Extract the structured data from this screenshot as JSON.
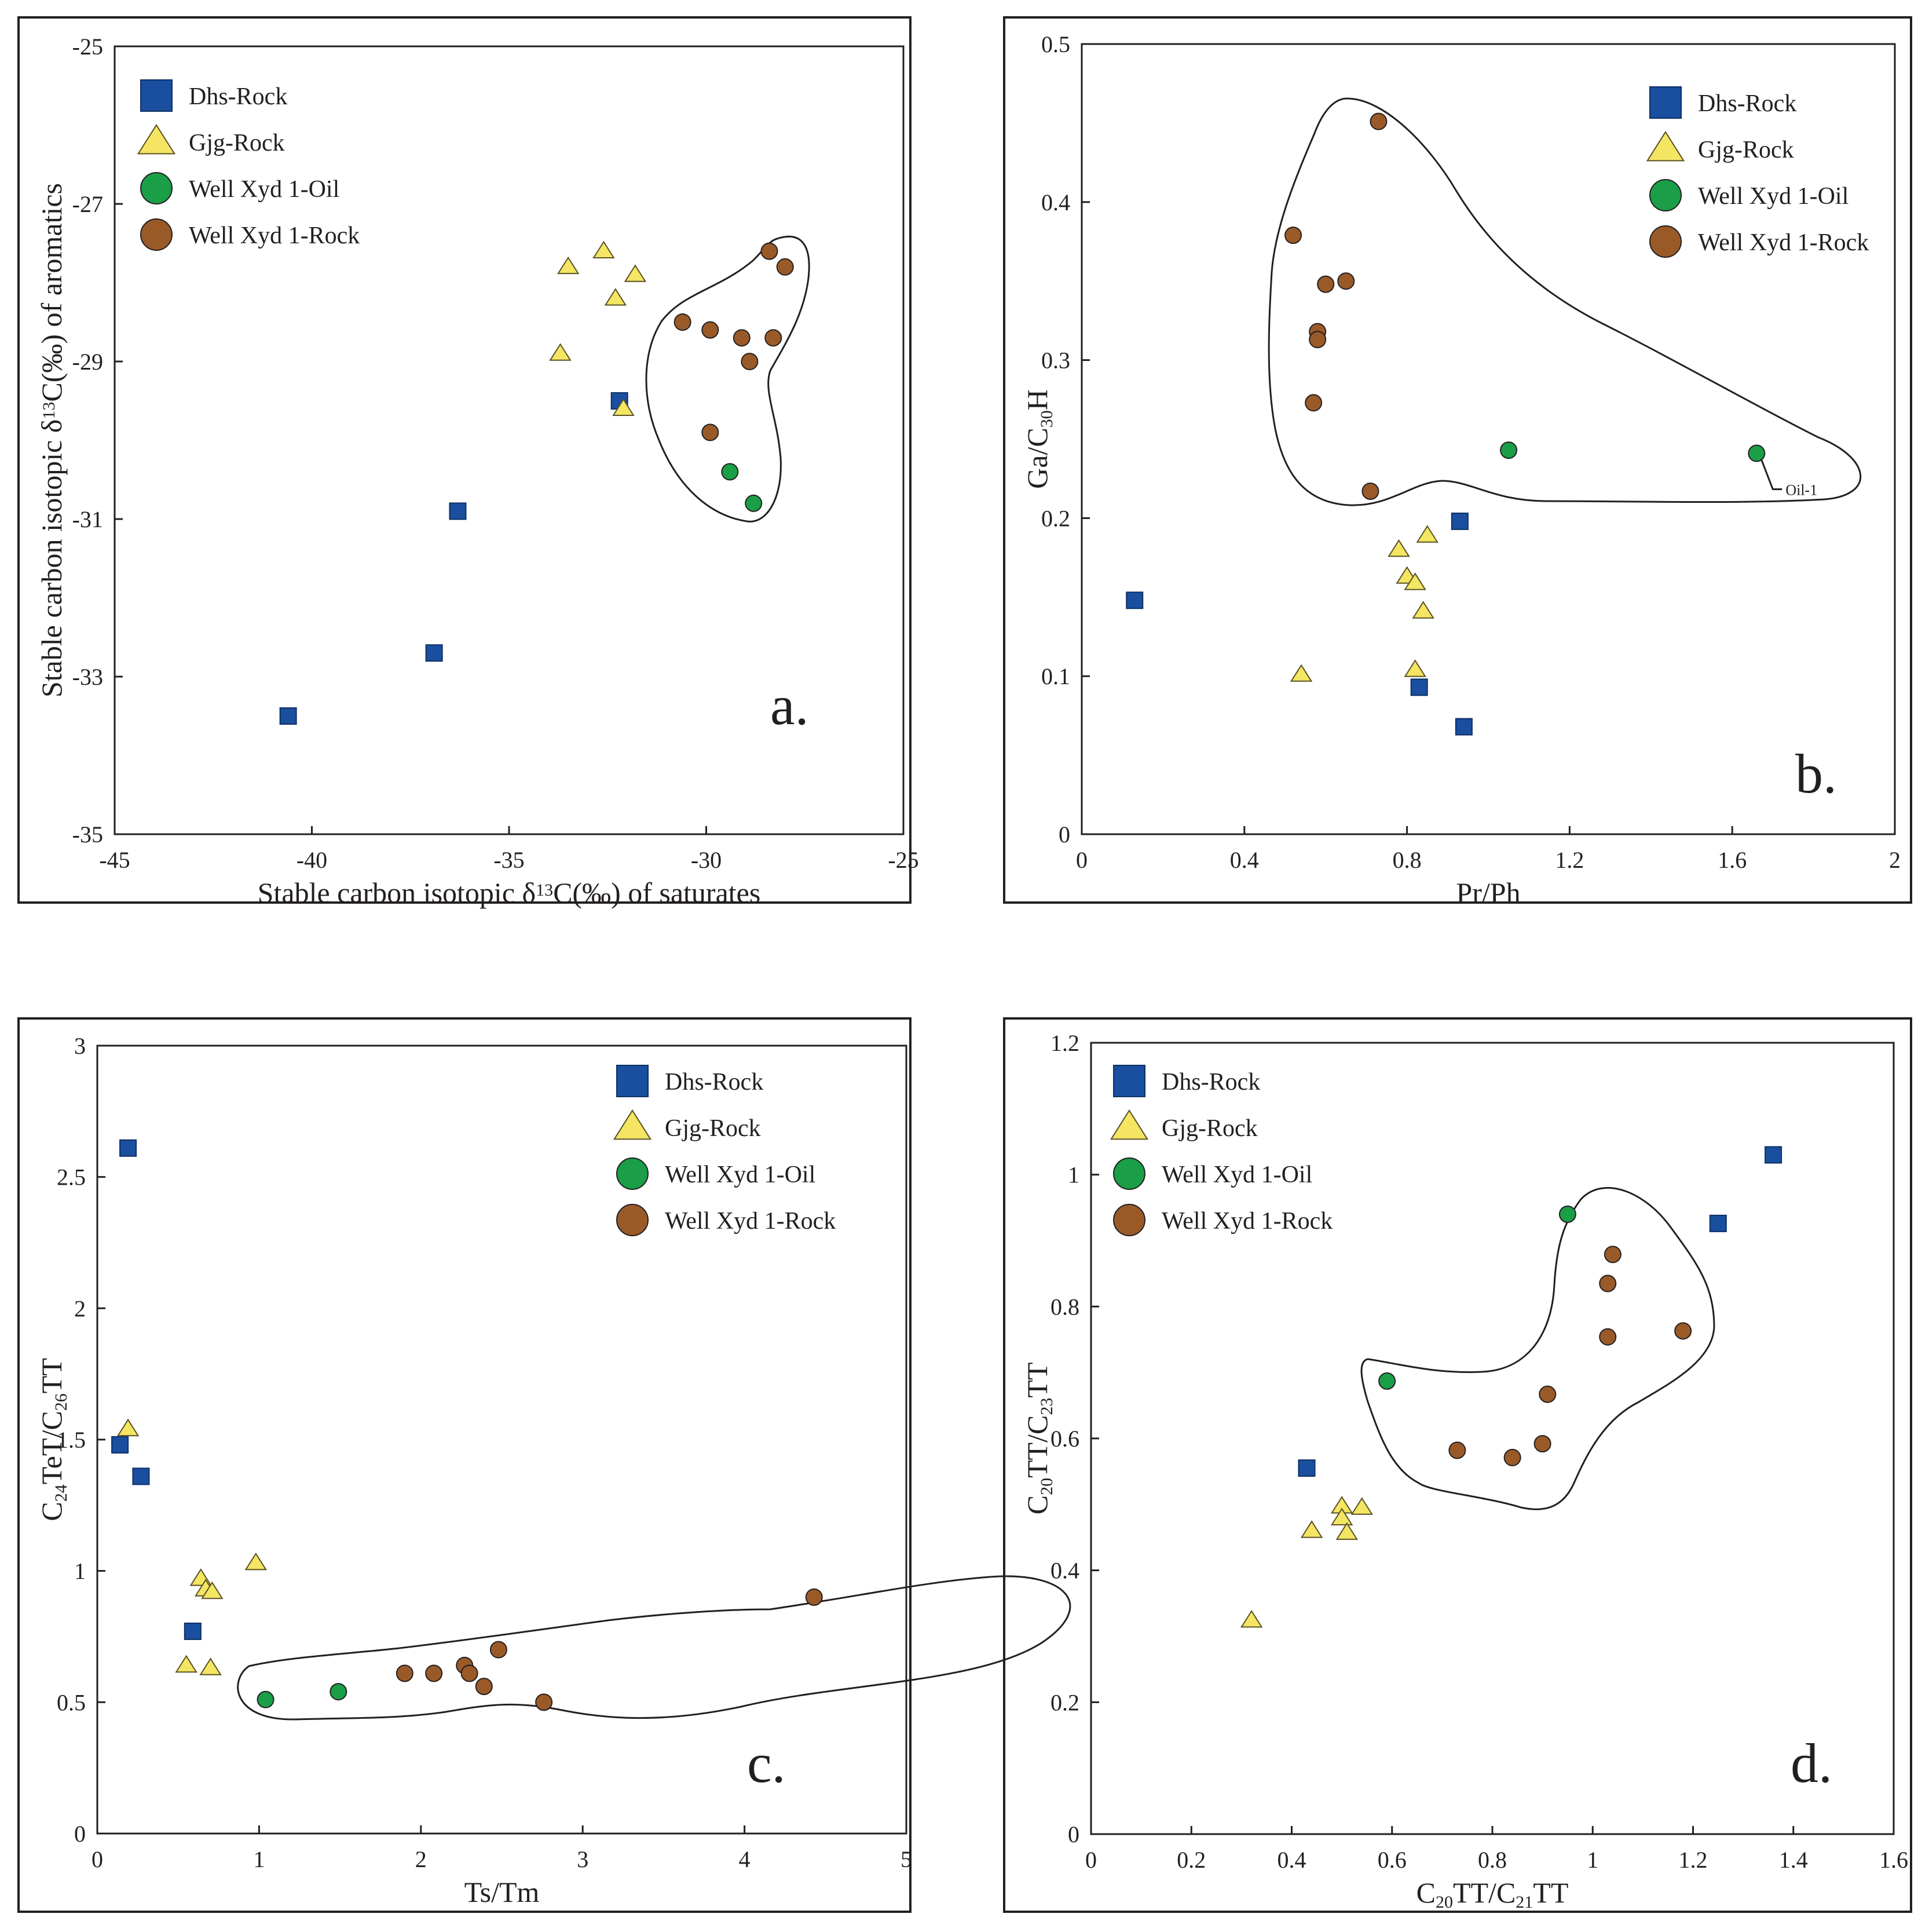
{
  "legend_labels": [
    "Dhs-Rock",
    "Gjg-Rock",
    "Well Xyd 1-Oil",
    "Well Xyd 1-Rock"
  ],
  "colors": {
    "dhs_rock": "#1a4f9f",
    "gjg_rock": "#f4e563",
    "xyd_oil": "#1a9e47",
    "xyd_rock": "#9a5a28",
    "ink": "#231f20"
  },
  "chart_data": [
    {
      "panel": "a.",
      "type": "scatter",
      "xlabel": "Stable carbon isotopic δ13C(‰) of  saturates",
      "ylabel": "Stable carbon isotopic δ13C(‰)  of aromatics",
      "xlim": [
        -45,
        -25
      ],
      "ylim": [
        -35,
        -25
      ],
      "xticks": [
        -45,
        -40,
        -35,
        -30,
        -25
      ],
      "yticks": [
        -35,
        -33,
        -31,
        -29,
        -27,
        -25
      ],
      "legend_position": "top-left",
      "series": [
        {
          "name": "Dhs-Rock",
          "x": [
            -40.6,
            -36.9,
            -36.3,
            -32.2
          ],
          "y": [
            -33.5,
            -32.7,
            -30.9,
            -29.5
          ]
        },
        {
          "name": "Gjg-Rock",
          "x": [
            -33.5,
            -32.6,
            -32.3,
            -31.8,
            -33.7,
            -32.1
          ],
          "y": [
            -27.8,
            -27.6,
            -28.2,
            -27.9,
            -28.9,
            -29.6
          ]
        },
        {
          "name": "Well Xyd 1-Oil",
          "x": [
            -29.4,
            -28.8
          ],
          "y": [
            -30.4,
            -30.8
          ]
        },
        {
          "name": "Well Xyd 1-Rock",
          "x": [
            -30.6,
            -29.9,
            -29.1,
            -28.9,
            -28.4,
            -28.0,
            -28.3,
            -29.9
          ],
          "y": [
            -28.5,
            -28.6,
            -28.7,
            -29.0,
            -27.6,
            -27.8,
            -28.7,
            -29.9
          ]
        }
      ]
    },
    {
      "panel": "b.",
      "type": "scatter",
      "xlabel": "Pr/Ph",
      "ylabel": "Ga/C30H",
      "xlim": [
        0,
        2
      ],
      "ylim": [
        0,
        0.5
      ],
      "xticks": [
        0,
        0.4,
        0.8,
        1.2,
        1.6,
        2
      ],
      "yticks": [
        0,
        0.1,
        0.2,
        0.3,
        0.4,
        0.5
      ],
      "legend_position": "top-right",
      "annotation": "Oil-1",
      "series": [
        {
          "name": "Dhs-Rock",
          "x": [
            0.13,
            0.93,
            0.83,
            0.94
          ],
          "y": [
            0.148,
            0.198,
            0.093,
            0.068
          ]
        },
        {
          "name": "Gjg-Rock",
          "x": [
            0.78,
            0.8,
            0.82,
            0.85,
            0.84,
            0.82,
            0.54
          ],
          "y": [
            0.18,
            0.163,
            0.159,
            0.189,
            0.141,
            0.104,
            0.101
          ]
        },
        {
          "name": "Well Xyd 1-Oil",
          "x": [
            1.05,
            1.66
          ],
          "y": [
            0.243,
            0.241
          ]
        },
        {
          "name": "Well Xyd 1-Rock",
          "x": [
            0.73,
            0.52,
            0.6,
            0.65,
            0.58,
            0.58,
            0.57,
            0.71
          ],
          "y": [
            0.451,
            0.379,
            0.348,
            0.35,
            0.318,
            0.313,
            0.273,
            0.217
          ]
        }
      ]
    },
    {
      "panel": "c.",
      "type": "scatter",
      "xlabel": "Ts/Tm",
      "ylabel": "C24TeT/C26TT",
      "xlim": [
        0,
        5
      ],
      "ylim": [
        0,
        3
      ],
      "xticks": [
        0,
        1,
        2,
        3,
        4,
        5
      ],
      "yticks": [
        0,
        0.5,
        1,
        1.5,
        2,
        2.5,
        3
      ],
      "legend_position": "top-right",
      "series": [
        {
          "name": "Dhs-Rock",
          "x": [
            0.19,
            0.14,
            0.27,
            0.59
          ],
          "y": [
            2.61,
            1.48,
            1.36,
            0.77
          ]
        },
        {
          "name": "Gjg-Rock",
          "x": [
            0.19,
            0.64,
            0.67,
            0.71,
            0.98,
            0.55,
            0.7
          ],
          "y": [
            1.54,
            0.97,
            0.93,
            0.92,
            1.03,
            0.64,
            0.63
          ]
        },
        {
          "name": "Well Xyd 1-Oil",
          "x": [
            1.04,
            1.49
          ],
          "y": [
            0.51,
            0.54
          ]
        },
        {
          "name": "Well Xyd 1-Rock",
          "x": [
            1.9,
            2.08,
            2.27,
            2.3,
            2.39,
            2.48,
            2.76,
            4.43
          ],
          "y": [
            0.61,
            0.61,
            0.64,
            0.61,
            0.56,
            0.7,
            0.5,
            0.9
          ]
        }
      ]
    },
    {
      "panel": "d.",
      "type": "scatter",
      "xlabel": "C20TT/C21TT",
      "ylabel": "C20TT/C23TT",
      "xlim": [
        0,
        1.6
      ],
      "ylim": [
        0,
        1.2
      ],
      "xticks": [
        0,
        0.2,
        0.4,
        0.6,
        0.8,
        1,
        1.2,
        1.4,
        1.6
      ],
      "yticks": [
        0,
        0.2,
        0.4,
        0.6,
        0.8,
        1,
        1.2
      ],
      "legend_position": "top-left",
      "series": [
        {
          "name": "Dhs-Rock",
          "x": [
            0.43,
            1.25,
            1.36
          ],
          "y": [
            0.555,
            0.926,
            1.03
          ]
        },
        {
          "name": "Gjg-Rock",
          "x": [
            0.32,
            0.44,
            0.5,
            0.5,
            0.51,
            0.54
          ],
          "y": [
            0.324,
            0.46,
            0.497,
            0.479,
            0.457,
            0.495
          ]
        },
        {
          "name": "Well Xyd 1-Oil",
          "x": [
            0.59,
            0.95
          ],
          "y": [
            0.687,
            0.94
          ]
        },
        {
          "name": "Well Xyd 1-Rock",
          "x": [
            0.73,
            0.84,
            0.9,
            0.91,
            1.03,
            1.03,
            1.04,
            1.18
          ],
          "y": [
            0.582,
            0.571,
            0.592,
            0.667,
            0.754,
            0.835,
            0.879,
            0.763
          ]
        }
      ]
    }
  ]
}
